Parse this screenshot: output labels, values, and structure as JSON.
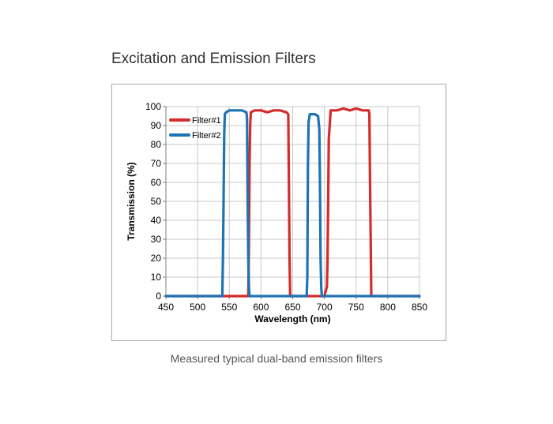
{
  "page": {
    "title": "Excitation and Emission Filters",
    "caption": "Measured typical dual-band emission filters"
  },
  "chart_data": {
    "type": "line",
    "xlabel": "Wavelength (nm)",
    "ylabel": "Transmission (%)",
    "xlim": [
      450,
      850
    ],
    "ylim": [
      0,
      100
    ],
    "xticks": [
      450,
      500,
      550,
      600,
      650,
      700,
      750,
      800,
      850
    ],
    "yticks": [
      0,
      10,
      20,
      30,
      40,
      50,
      60,
      70,
      80,
      90,
      100
    ],
    "grid": true,
    "legend_position": "top-left",
    "series": [
      {
        "name": "Filter#1",
        "color": "#d42b2b",
        "x": [
          450,
          580,
          581,
          582,
          583,
          584,
          590,
          600,
          610,
          620,
          630,
          640,
          643,
          644,
          645,
          646,
          700,
          704,
          705,
          706,
          707,
          710,
          720,
          730,
          740,
          750,
          760,
          770,
          771,
          772,
          773,
          774,
          850
        ],
        "y": [
          0,
          0,
          30,
          70,
          90,
          97,
          98,
          98,
          97,
          98,
          98,
          97,
          96,
          60,
          20,
          0,
          0,
          5,
          20,
          50,
          83,
          98,
          98,
          99,
          98,
          99,
          98,
          98,
          96,
          60,
          31,
          0,
          0
        ]
      },
      {
        "name": "Filter#2",
        "color": "#1e73b4",
        "x": [
          450,
          539,
          540,
          541,
          542,
          543,
          545,
          550,
          560,
          570,
          577,
          578,
          579,
          580,
          581,
          582,
          672,
          673,
          674,
          675,
          677,
          680,
          685,
          690,
          692,
          693,
          694,
          695,
          696,
          850
        ],
        "y": [
          0,
          0,
          20,
          50,
          85,
          96,
          97,
          98,
          98,
          98,
          97,
          94,
          50,
          20,
          5,
          0,
          0,
          10,
          70,
          92,
          96,
          96,
          96,
          95,
          88,
          60,
          20,
          5,
          0,
          0
        ]
      }
    ]
  }
}
